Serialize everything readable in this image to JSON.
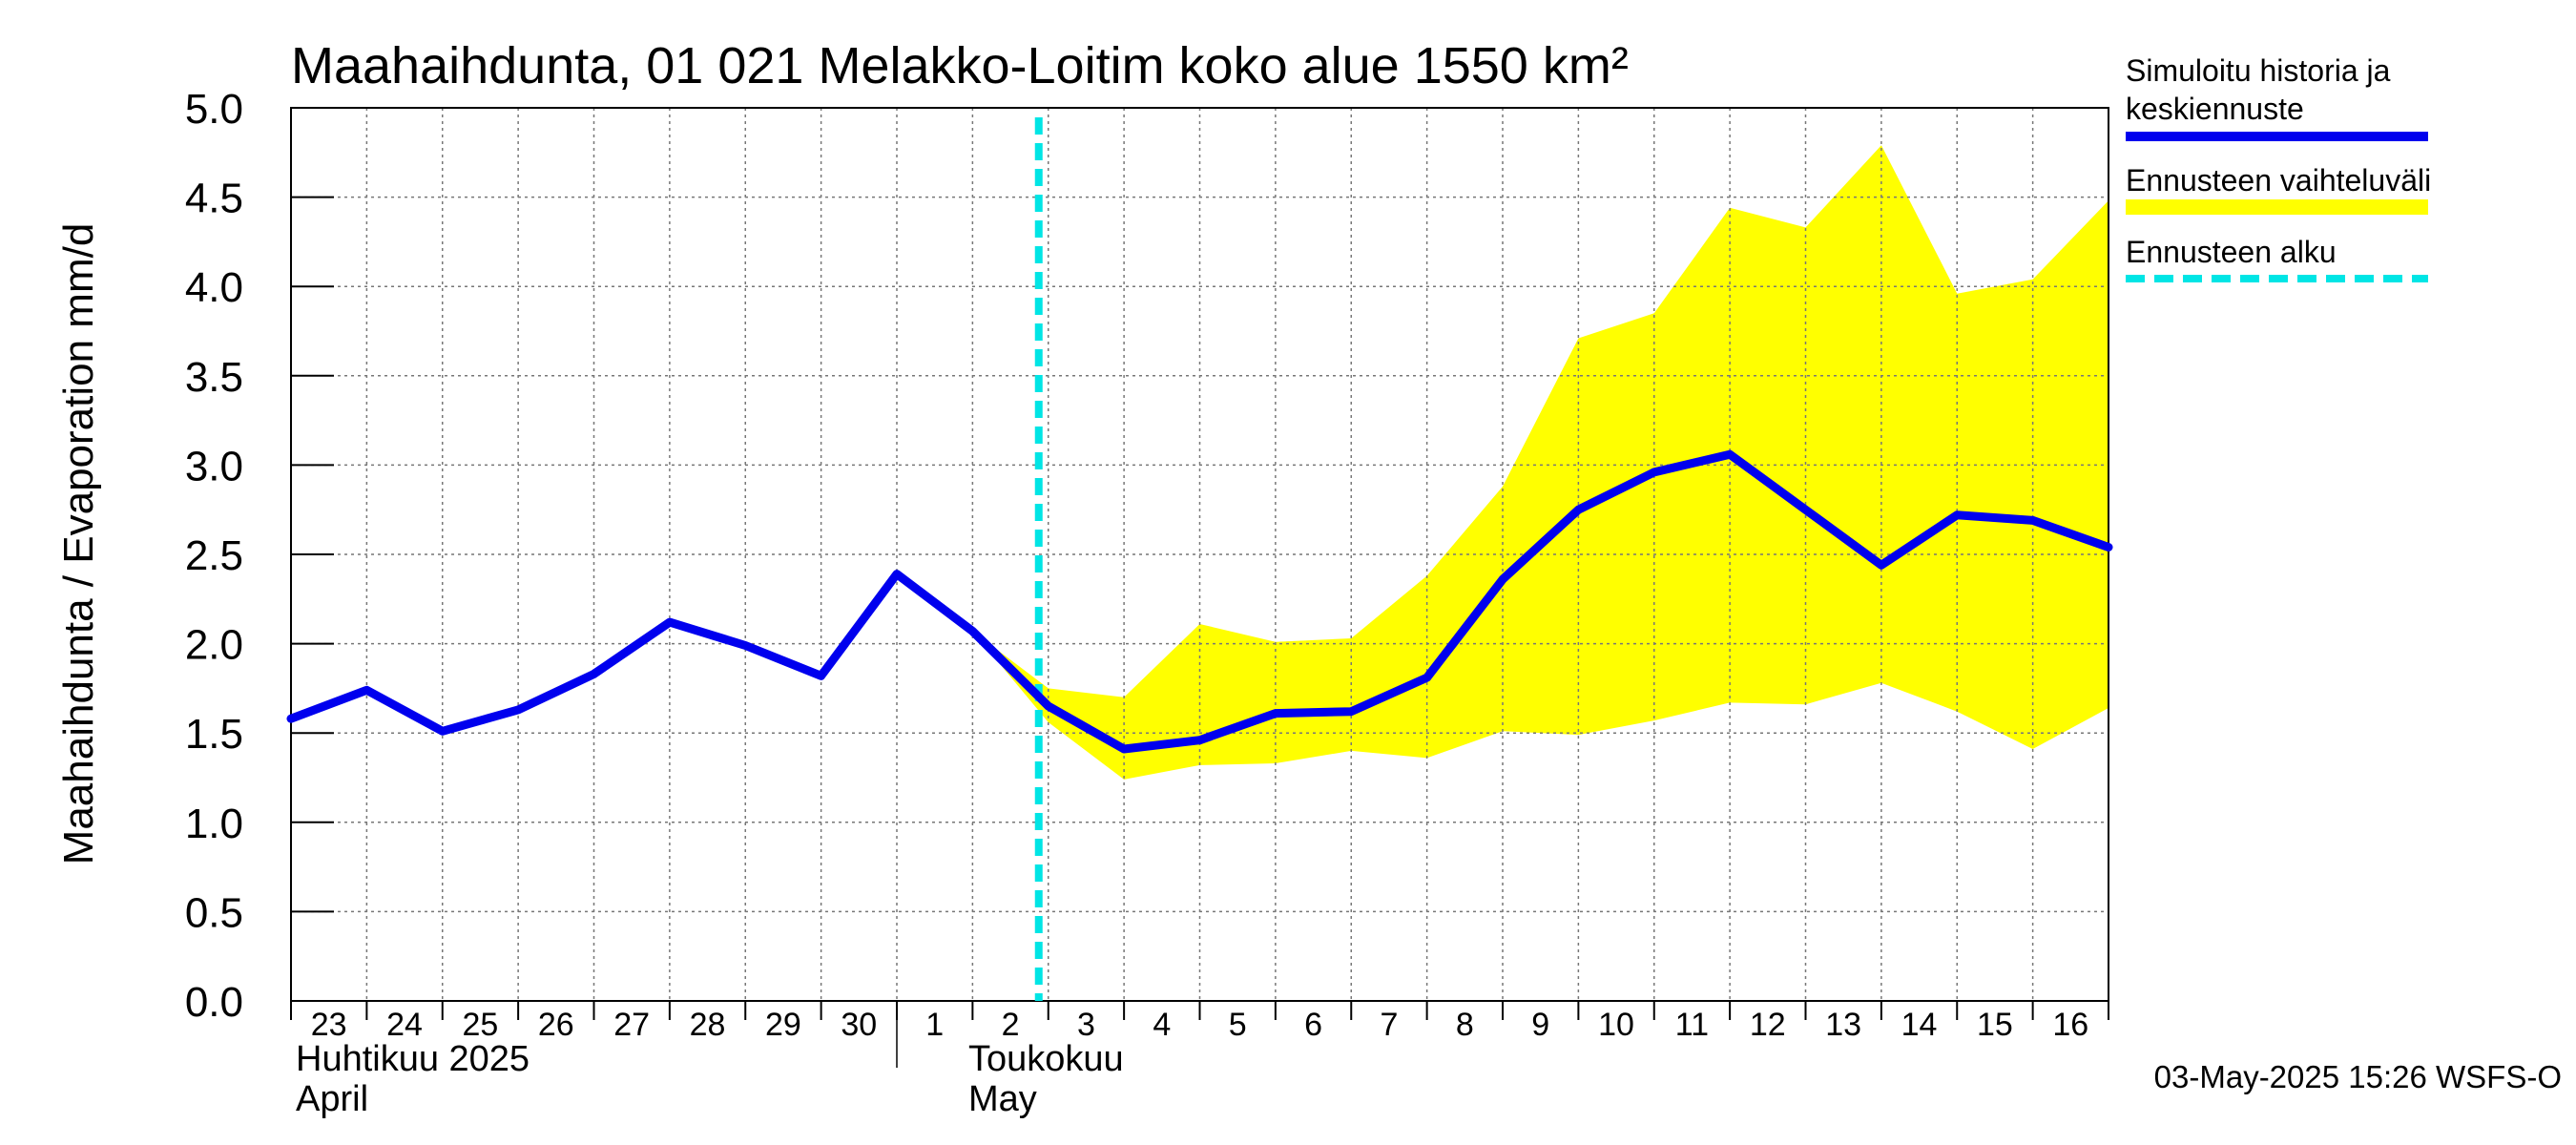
{
  "chart_data": {
    "type": "line",
    "title": "Maahaihdunta, 01 021 Melakko-Loitim koko alue 1550 km²",
    "ylabel": "Maahaihdunta / Evaporation   mm/d",
    "ylim": [
      0,
      5.0
    ],
    "yticks": [
      "0.0",
      "0.5",
      "1.0",
      "1.5",
      "2.0",
      "2.5",
      "3.0",
      "3.5",
      "4.0",
      "4.5",
      "5.0"
    ],
    "grid": true,
    "x_dates": [
      "2025-04-23",
      "2025-04-24",
      "2025-04-25",
      "2025-04-26",
      "2025-04-27",
      "2025-04-28",
      "2025-04-29",
      "2025-04-30",
      "2025-05-01",
      "2025-05-02",
      "2025-05-03",
      "2025-05-04",
      "2025-05-05",
      "2025-05-06",
      "2025-05-07",
      "2025-05-08",
      "2025-05-09",
      "2025-05-10",
      "2025-05-11",
      "2025-05-12",
      "2025-05-13",
      "2025-05-14",
      "2025-05-15",
      "2025-05-16",
      "2025-05-17"
    ],
    "xtick_labels": [
      "23",
      "24",
      "25",
      "26",
      "27",
      "28",
      "29",
      "30",
      "1",
      "2",
      "3",
      "4",
      "5",
      "6",
      "7",
      "8",
      "9",
      "10",
      "11",
      "12",
      "13",
      "14",
      "15",
      "16"
    ],
    "month_labels": [
      {
        "line1": "Huhtikuu  2025",
        "line2": "April",
        "start": "2025-04-23"
      },
      {
        "line1": "Toukokuu",
        "line2": "May",
        "start": "2025-05-03"
      }
    ],
    "series": [
      {
        "name": "Simuloitu historia ja keskiennuste",
        "color": "#0000ee",
        "values": [
          1.58,
          1.74,
          1.51,
          1.63,
          1.83,
          2.12,
          1.99,
          1.82,
          2.39,
          2.07,
          1.65,
          1.41,
          1.46,
          1.61,
          1.62,
          1.81,
          2.36,
          2.75,
          2.96,
          3.06,
          2.75,
          2.44,
          2.72,
          2.69,
          2.54
        ]
      }
    ],
    "band": {
      "name": "Ennusteen vaihteluväli",
      "color": "#ffff00",
      "upper": [
        null,
        null,
        null,
        null,
        null,
        null,
        null,
        null,
        null,
        2.07,
        1.75,
        1.7,
        2.11,
        2.01,
        2.03,
        2.38,
        2.88,
        3.71,
        3.85,
        4.44,
        4.33,
        4.79,
        3.96,
        4.04,
        4.48
      ],
      "lower": [
        null,
        null,
        null,
        null,
        null,
        null,
        null,
        null,
        null,
        2.07,
        1.56,
        1.24,
        1.32,
        1.33,
        1.4,
        1.36,
        1.51,
        1.49,
        1.57,
        1.67,
        1.66,
        1.78,
        1.62,
        1.41,
        1.64
      ]
    },
    "forecast_start": {
      "name": "Ennusteen alku",
      "date": "2025-05-03",
      "color": "#00e5e5"
    },
    "legend_position": "right",
    "legend": [
      {
        "label_line1": "Simuloitu historia ja",
        "label_line2": "keskiennuste",
        "color": "#0000ee",
        "style": "solid"
      },
      {
        "label_line1": "Ennusteen vaihteluväli",
        "label_line2": "",
        "color": "#ffff00",
        "style": "solid"
      },
      {
        "label_line1": "Ennusteen alku",
        "label_line2": "",
        "color": "#00e5e5",
        "style": "dashed"
      }
    ],
    "footer": "03-May-2025 15:26 WSFS-O"
  }
}
